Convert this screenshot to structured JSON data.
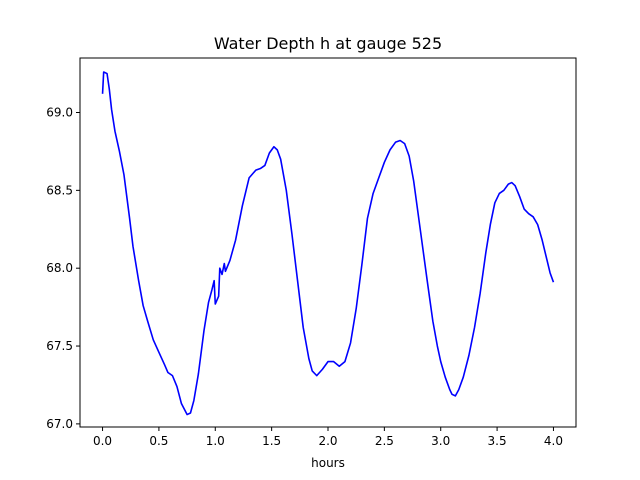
{
  "chart_data": {
    "type": "line",
    "title": "Water Depth h at gauge 525",
    "xlabel": "hours",
    "ylabel": "",
    "xlim": [
      -0.2,
      4.2
    ],
    "ylim": [
      66.98,
      69.35
    ],
    "xticks": [
      0.0,
      0.5,
      1.0,
      1.5,
      2.0,
      2.5,
      3.0,
      3.5,
      4.0
    ],
    "xtick_labels": [
      "0.0",
      "0.5",
      "1.0",
      "1.5",
      "2.0",
      "2.5",
      "3.0",
      "3.5",
      "4.0"
    ],
    "yticks": [
      67.0,
      67.5,
      68.0,
      68.5,
      69.0
    ],
    "ytick_labels": [
      "67.0",
      "67.5",
      "68.0",
      "68.5",
      "69.0"
    ],
    "grid": false,
    "series": [
      {
        "color": "#0000ff",
        "points": [
          [
            0.0,
            69.12
          ],
          [
            0.01,
            69.26
          ],
          [
            0.04,
            69.25
          ],
          [
            0.06,
            69.15
          ],
          [
            0.08,
            69.02
          ],
          [
            0.11,
            68.88
          ],
          [
            0.15,
            68.75
          ],
          [
            0.19,
            68.6
          ],
          [
            0.24,
            68.32
          ],
          [
            0.27,
            68.14
          ],
          [
            0.32,
            67.92
          ],
          [
            0.36,
            67.76
          ],
          [
            0.4,
            67.66
          ],
          [
            0.45,
            67.54
          ],
          [
            0.5,
            67.46
          ],
          [
            0.55,
            67.38
          ],
          [
            0.58,
            67.33
          ],
          [
            0.62,
            67.31
          ],
          [
            0.66,
            67.24
          ],
          [
            0.7,
            67.13
          ],
          [
            0.75,
            67.06
          ],
          [
            0.78,
            67.07
          ],
          [
            0.81,
            67.15
          ],
          [
            0.85,
            67.32
          ],
          [
            0.9,
            67.6
          ],
          [
            0.94,
            67.78
          ],
          [
            0.97,
            67.86
          ],
          [
            0.99,
            67.92
          ],
          [
            1.0,
            67.77
          ],
          [
            1.03,
            67.82
          ],
          [
            1.04,
            68.0
          ],
          [
            1.06,
            67.96
          ],
          [
            1.08,
            68.03
          ],
          [
            1.09,
            67.98
          ],
          [
            1.13,
            68.05
          ],
          [
            1.18,
            68.18
          ],
          [
            1.24,
            68.4
          ],
          [
            1.3,
            68.58
          ],
          [
            1.36,
            68.63
          ],
          [
            1.4,
            68.64
          ],
          [
            1.44,
            68.66
          ],
          [
            1.48,
            68.74
          ],
          [
            1.52,
            68.78
          ],
          [
            1.55,
            68.76
          ],
          [
            1.58,
            68.7
          ],
          [
            1.63,
            68.5
          ],
          [
            1.68,
            68.22
          ],
          [
            1.73,
            67.92
          ],
          [
            1.78,
            67.62
          ],
          [
            1.83,
            67.42
          ],
          [
            1.86,
            67.34
          ],
          [
            1.9,
            67.31
          ],
          [
            1.95,
            67.35
          ],
          [
            2.0,
            67.4
          ],
          [
            2.05,
            67.4
          ],
          [
            2.1,
            67.37
          ],
          [
            2.15,
            67.4
          ],
          [
            2.2,
            67.52
          ],
          [
            2.25,
            67.74
          ],
          [
            2.3,
            68.02
          ],
          [
            2.35,
            68.32
          ],
          [
            2.4,
            68.48
          ],
          [
            2.45,
            68.58
          ],
          [
            2.5,
            68.68
          ],
          [
            2.55,
            68.76
          ],
          [
            2.6,
            68.81
          ],
          [
            2.64,
            68.82
          ],
          [
            2.68,
            68.8
          ],
          [
            2.72,
            68.72
          ],
          [
            2.76,
            68.56
          ],
          [
            2.82,
            68.24
          ],
          [
            2.88,
            67.92
          ],
          [
            2.93,
            67.66
          ],
          [
            2.97,
            67.5
          ],
          [
            3.0,
            67.4
          ],
          [
            3.04,
            67.3
          ],
          [
            3.08,
            67.22
          ],
          [
            3.1,
            67.19
          ],
          [
            3.13,
            67.18
          ],
          [
            3.16,
            67.22
          ],
          [
            3.2,
            67.3
          ],
          [
            3.25,
            67.44
          ],
          [
            3.3,
            67.62
          ],
          [
            3.35,
            67.84
          ],
          [
            3.4,
            68.1
          ],
          [
            3.44,
            68.28
          ],
          [
            3.48,
            68.42
          ],
          [
            3.52,
            68.48
          ],
          [
            3.56,
            68.5
          ],
          [
            3.6,
            68.54
          ],
          [
            3.63,
            68.55
          ],
          [
            3.66,
            68.53
          ],
          [
            3.7,
            68.46
          ],
          [
            3.74,
            68.38
          ],
          [
            3.78,
            68.35
          ],
          [
            3.82,
            68.33
          ],
          [
            3.86,
            68.28
          ],
          [
            3.9,
            68.18
          ],
          [
            3.94,
            68.06
          ],
          [
            3.97,
            67.97
          ],
          [
            4.0,
            67.91
          ]
        ]
      }
    ]
  }
}
